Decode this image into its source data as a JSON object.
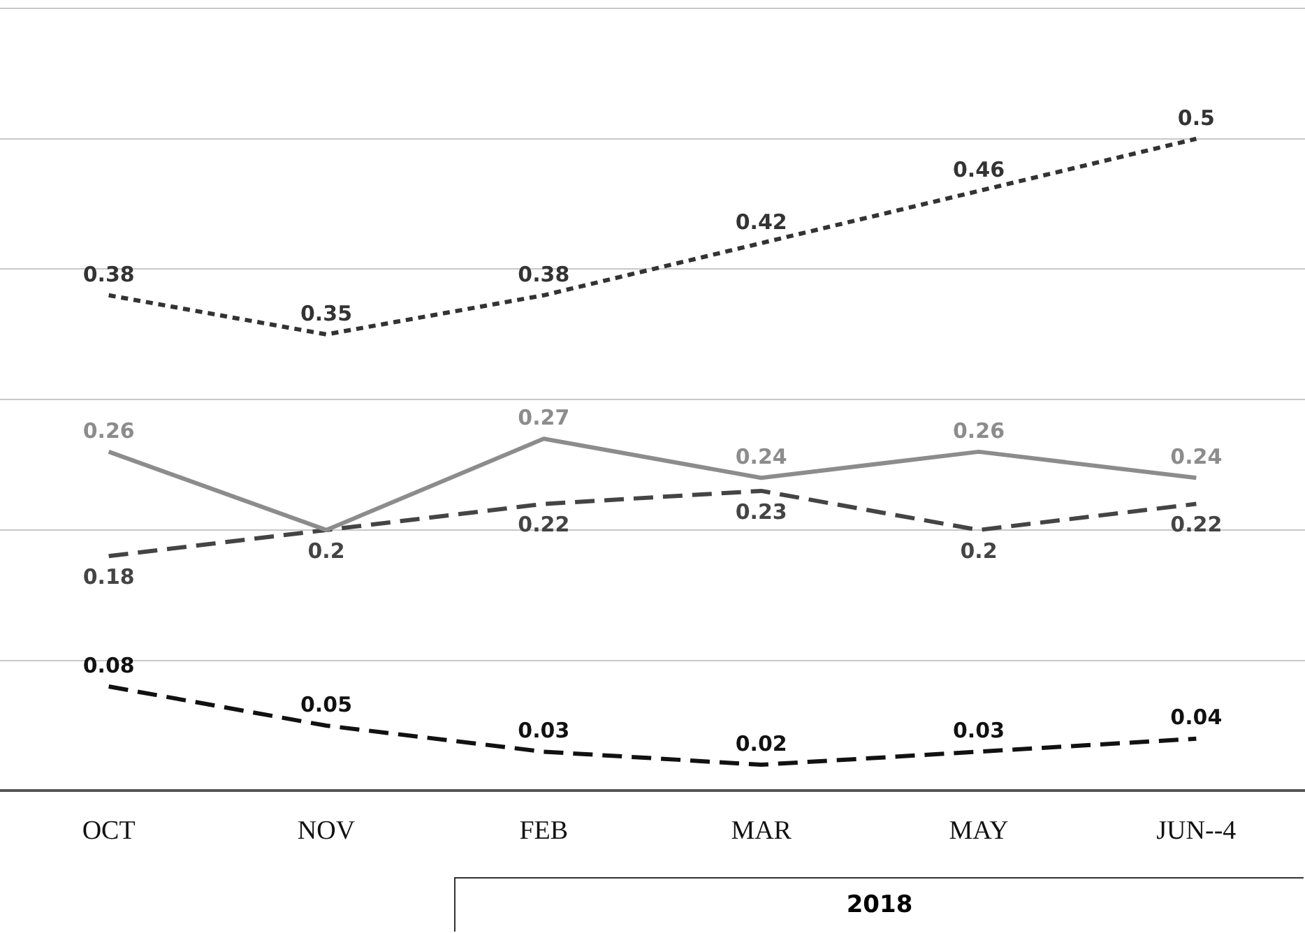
{
  "chart_data": {
    "type": "line",
    "categories": [
      "OCT",
      "NOV",
      "FEB",
      "MAR",
      "MAY",
      "JUN--4"
    ],
    "series": [
      {
        "color": "#333333",
        "line_style": "dotted",
        "values": [
          0.38,
          0.35,
          0.38,
          0.42,
          0.46,
          0.5
        ],
        "value_labels": [
          "0.38",
          "0.35",
          "0.38",
          "0.42",
          "0.46",
          "0.5"
        ]
      },
      {
        "color": "#8c8c8c",
        "line_style": "solid",
        "values": [
          0.26,
          0.2,
          0.27,
          0.24,
          0.26,
          0.24
        ],
        "value_labels": [
          "0.26",
          null,
          "0.27",
          "0.24",
          "0.26",
          "0.24"
        ]
      },
      {
        "color": "#444444",
        "line_style": "dashed",
        "values": [
          0.18,
          0.2,
          0.22,
          0.23,
          0.2,
          0.22
        ],
        "value_labels": [
          "0.18",
          "0.2",
          "0.22",
          "0.23",
          "0.2",
          "0.22"
        ]
      },
      {
        "color": "#111111",
        "line_style": "dashed",
        "values": [
          0.08,
          0.05,
          0.03,
          0.02,
          0.03,
          0.04
        ],
        "value_labels": [
          "0.08",
          "0.05",
          "0.03",
          "0.02",
          "0.03",
          "0.04"
        ]
      }
    ],
    "ylim": [
      0,
      0.6
    ],
    "yticks": [
      {
        "value": 0,
        "label": null
      },
      {
        "value": 0.1,
        "label": null
      },
      {
        "value": 0.2,
        "label": null
      },
      {
        "value": 0.3,
        "label": null
      },
      {
        "value": 0.4,
        "label": null
      },
      {
        "value": 0.5,
        "label": null
      },
      {
        "value": 0.6,
        "label": null
      }
    ],
    "grid": "y",
    "tick_labels": "x",
    "legend": false,
    "annotations": [
      "2018"
    ]
  }
}
